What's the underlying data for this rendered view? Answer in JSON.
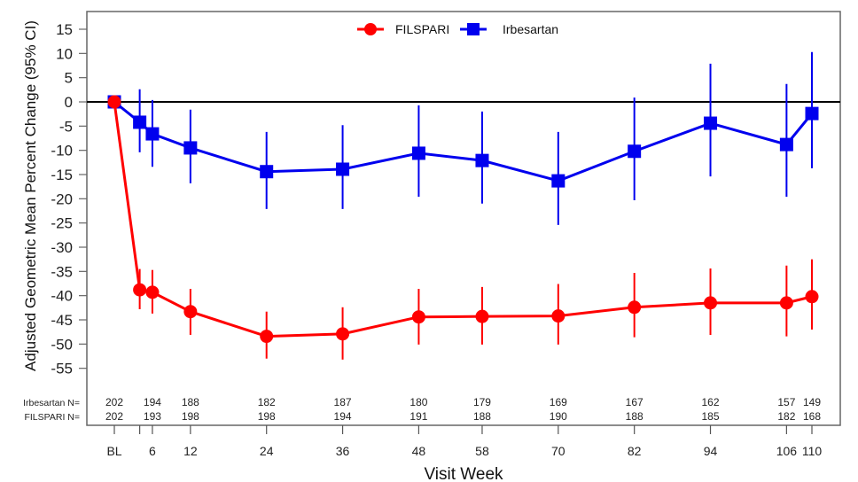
{
  "chart_data": {
    "type": "line",
    "title": "",
    "xlabel": "Visit Week",
    "ylabel": "Adjusted Geometric Mean Percent Change (95% CI)",
    "ylim": [
      -60,
      18
    ],
    "xlim": [
      -4,
      115
    ],
    "yticks": [
      15,
      10,
      5,
      0,
      -5,
      -10,
      -15,
      -20,
      -25,
      -30,
      -35,
      -40,
      -45,
      -50,
      -55
    ],
    "xticks": [
      {
        "week": 0,
        "label": "BL"
      },
      {
        "week": 4,
        "label": ""
      },
      {
        "week": 6,
        "label": "6"
      },
      {
        "week": 12,
        "label": "12"
      },
      {
        "week": 24,
        "label": "24"
      },
      {
        "week": 36,
        "label": "36"
      },
      {
        "week": 48,
        "label": "48"
      },
      {
        "week": 58,
        "label": "58"
      },
      {
        "week": 70,
        "label": "70"
      },
      {
        "week": 82,
        "label": "82"
      },
      {
        "week": 94,
        "label": "94"
      },
      {
        "week": 106,
        "label": "106"
      },
      {
        "week": 110,
        "label": "110"
      }
    ],
    "reference_line": 0,
    "grid": false,
    "legend_position": "top-center",
    "series": [
      {
        "name": "FILSPARI",
        "color": "#ff0000",
        "marker": "circle",
        "weeks": [
          0,
          4,
          6,
          12,
          24,
          36,
          48,
          58,
          70,
          82,
          94,
          106,
          110
        ],
        "values": [
          0,
          -38.8,
          -39.3,
          -43.3,
          -48.4,
          -47.9,
          -44.4,
          -44.3,
          -44.2,
          -42.4,
          -41.5,
          -41.5,
          -40.2
        ],
        "ci_lower": [
          0,
          -42.8,
          -43.7,
          -48.1,
          -53.0,
          -53.2,
          -50.1,
          -50.1,
          -50.1,
          -48.6,
          -48.1,
          -48.4,
          -47.0
        ],
        "ci_upper": [
          0,
          -34.5,
          -34.7,
          -38.6,
          -43.3,
          -42.4,
          -38.6,
          -38.2,
          -37.6,
          -35.3,
          -34.4,
          -33.8,
          -32.5
        ]
      },
      {
        "name": "Irbesartan",
        "color": "#0000ee",
        "marker": "square",
        "weeks": [
          0,
          4,
          6,
          12,
          24,
          36,
          48,
          58,
          70,
          82,
          94,
          106,
          110
        ],
        "values": [
          0,
          -4.2,
          -6.6,
          -9.5,
          -14.4,
          -13.9,
          -10.6,
          -12.1,
          -16.3,
          -10.2,
          -4.4,
          -8.8,
          -2.4
        ],
        "ci_lower": [
          0,
          -10.4,
          -13.4,
          -16.8,
          -22.1,
          -22.1,
          -19.6,
          -21.0,
          -25.4,
          -20.3,
          -15.4,
          -19.6,
          -13.7
        ],
        "ci_upper": [
          0,
          2.6,
          0.4,
          -1.6,
          -6.2,
          -4.8,
          -0.7,
          -2.0,
          -6.2,
          0.9,
          7.9,
          3.7,
          10.3
        ]
      }
    ],
    "n_table": {
      "rows": [
        {
          "label": "Irbesartan N=",
          "weeks": [
            0,
            6,
            12,
            24,
            36,
            48,
            58,
            70,
            82,
            94,
            106,
            110
          ],
          "counts": [
            "202",
            "194",
            "188",
            "182",
            "187",
            "180",
            "179",
            "169",
            "167",
            "162",
            "157",
            "149"
          ]
        },
        {
          "label": "FILSPARI N=",
          "weeks": [
            0,
            6,
            12,
            24,
            36,
            48,
            58,
            70,
            82,
            94,
            106,
            110
          ],
          "counts": [
            "202",
            "193",
            "198",
            "198",
            "194",
            "191",
            "188",
            "190",
            "188",
            "185",
            "182",
            "168"
          ]
        }
      ]
    }
  }
}
